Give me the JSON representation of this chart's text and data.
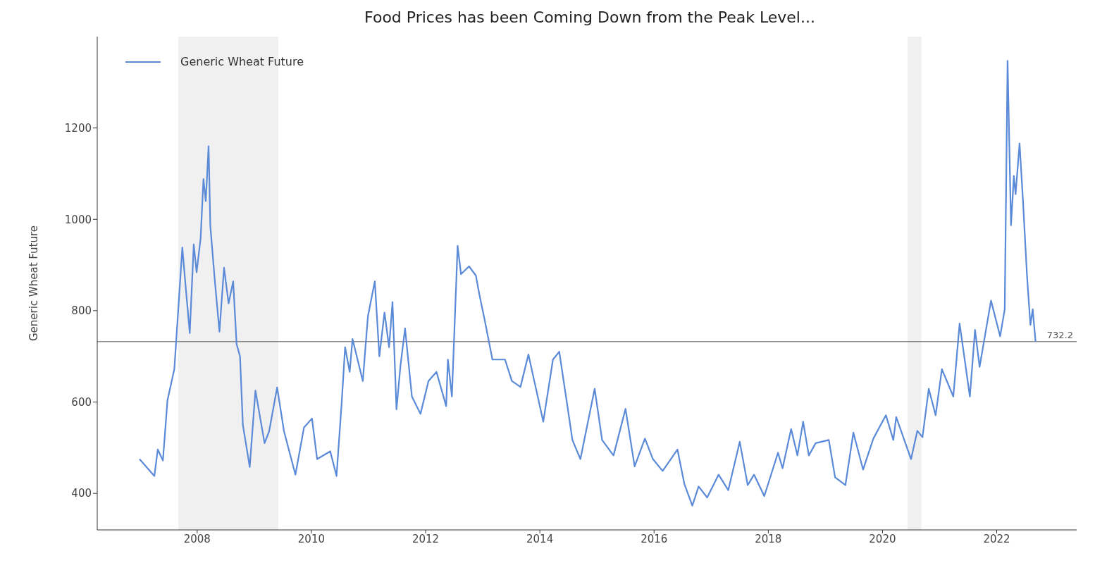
{
  "chart_data": {
    "type": "line",
    "title": "Food Prices has been Coming Down from the Peak Level...",
    "ylabel": "Generic Wheat Future",
    "x": [
      2006.99,
      2007.25,
      2007.31,
      2007.4,
      2007.48,
      2007.6,
      2007.74,
      2007.8,
      2007.87,
      2007.94,
      2007.99,
      2008.06,
      2008.11,
      2008.15,
      2008.2,
      2008.23,
      2008.31,
      2008.39,
      2008.47,
      2008.55,
      2008.63,
      2008.69,
      2008.75,
      2008.8,
      2008.92,
      2009.02,
      2009.18,
      2009.26,
      2009.4,
      2009.52,
      2009.72,
      2009.87,
      2010.01,
      2010.1,
      2010.33,
      2010.44,
      2010.53,
      2010.59,
      2010.67,
      2010.72,
      2010.9,
      2010.99,
      2011.11,
      2011.19,
      2011.28,
      2011.36,
      2011.42,
      2011.49,
      2011.56,
      2011.64,
      2011.76,
      2011.91,
      2012.05,
      2012.19,
      2012.36,
      2012.39,
      2012.46,
      2012.56,
      2012.62,
      2012.76,
      2012.88,
      2012.94,
      2013.03,
      2013.17,
      2013.39,
      2013.51,
      2013.66,
      2013.8,
      2014.06,
      2014.23,
      2014.34,
      2014.49,
      2014.57,
      2014.71,
      2014.96,
      2015.09,
      2015.29,
      2015.5,
      2015.66,
      2015.84,
      2015.98,
      2016.15,
      2016.41,
      2016.53,
      2016.67,
      2016.78,
      2016.93,
      2017.13,
      2017.3,
      2017.5,
      2017.64,
      2017.75,
      2017.93,
      2018.17,
      2018.25,
      2018.4,
      2018.51,
      2018.61,
      2018.71,
      2018.83,
      2019.06,
      2019.17,
      2019.35,
      2019.49,
      2019.66,
      2019.84,
      2020.06,
      2020.19,
      2020.24,
      2020.5,
      2020.61,
      2020.7,
      2020.81,
      2020.93,
      2021.04,
      2021.24,
      2021.35,
      2021.53,
      2021.62,
      2021.7,
      2021.9,
      2022.06,
      2022.14,
      2022.19,
      2022.25,
      2022.3,
      2022.33,
      2022.4,
      2022.46,
      2022.53,
      2022.59,
      2022.63,
      2022.68
    ],
    "series": [
      {
        "name": "Generic Wheat Future",
        "color": "#5b8ad8",
        "values": [
          475,
          438,
          496,
          472,
          604,
          672,
          938,
          850,
          751,
          945,
          884,
          958,
          1088,
          1040,
          1160,
          986,
          864,
          754,
          894,
          816,
          864,
          727,
          700,
          550,
          458,
          625,
          510,
          536,
          632,
          536,
          441,
          544,
          564,
          475,
          492,
          438,
          598,
          720,
          666,
          738,
          646,
          788,
          864,
          700,
          796,
          720,
          819,
          584,
          680,
          761,
          612,
          574,
          646,
          666,
          591,
          693,
          612,
          942,
          880,
          897,
          877,
          836,
          782,
          693,
          693,
          646,
          633,
          704,
          557,
          693,
          710,
          585,
          517,
          475,
          629,
          517,
          483,
          585,
          459,
          520,
          475,
          449,
          496,
          421,
          373,
          415,
          391,
          441,
          407,
          513,
          418,
          441,
          394,
          489,
          455,
          541,
          483,
          557,
          483,
          510,
          517,
          435,
          418,
          533,
          452,
          520,
          571,
          517,
          567,
          475,
          537,
          523,
          629,
          571,
          672,
          612,
          772,
          612,
          758,
          677,
          822,
          744,
          803,
          1347,
          987,
          1095,
          1055,
          1166,
          1040,
          877,
          769,
          803,
          732.2
        ]
      }
    ],
    "xlim": [
      2006.25,
      2023.4
    ],
    "xticks": [
      2008,
      2010,
      2012,
      2014,
      2016,
      2018,
      2020,
      2022
    ],
    "ylim": [
      320,
      1400
    ],
    "yticks": [
      400,
      600,
      800,
      1000,
      1200
    ],
    "grid": false,
    "legend": "top left",
    "ref_lines": [
      {
        "axis": "y",
        "value": 732.2,
        "label": "732.2",
        "color": "#555555"
      }
    ],
    "bands": [
      {
        "axis": "x",
        "from": 2007.67,
        "to": 2009.42,
        "color": "#f0f0f0"
      },
      {
        "axis": "x",
        "from": 2020.44,
        "to": 2020.68,
        "color": "#f0f0f0"
      }
    ]
  }
}
